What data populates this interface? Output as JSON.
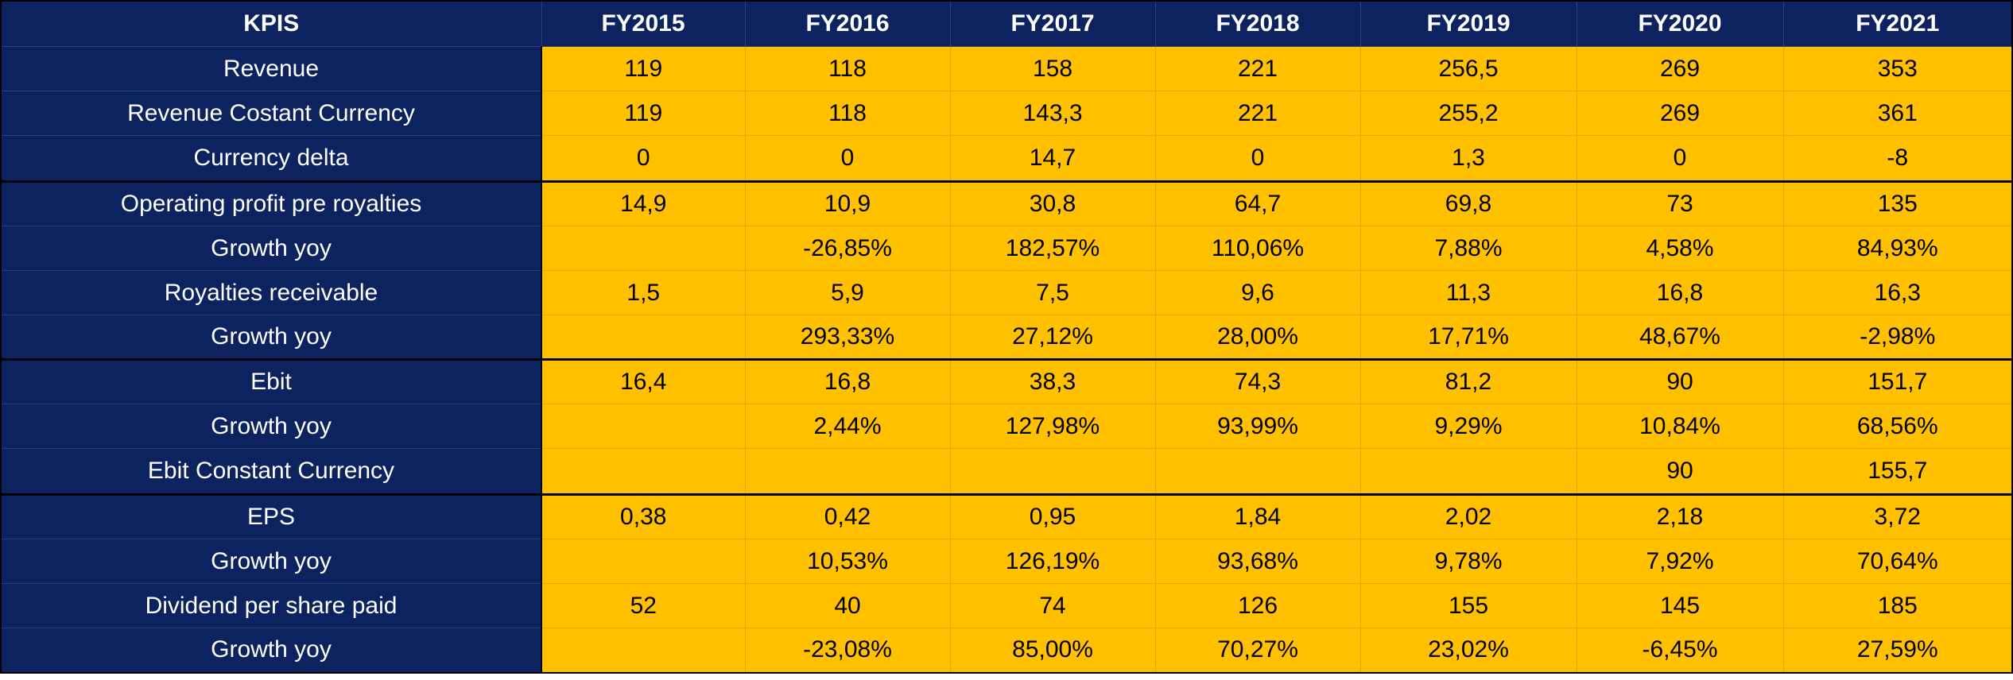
{
  "table": {
    "header": [
      "KPIS",
      "FY2015",
      "FY2016",
      "FY2017",
      "FY2018",
      "FY2019",
      "FY2020",
      "FY2021"
    ],
    "rows": [
      {
        "label": "Revenue",
        "values": [
          "119",
          "118",
          "158",
          "221",
          "256,5",
          "269",
          "353"
        ]
      },
      {
        "label": "Revenue Costant Currency",
        "values": [
          "119",
          "118",
          "143,3",
          "221",
          "255,2",
          "269",
          "361"
        ]
      },
      {
        "label": "Currency delta",
        "values": [
          "0",
          "0",
          "14,7",
          "0",
          "1,3",
          "0",
          "-8"
        ]
      },
      {
        "label": "Operating profit pre royalties",
        "values": [
          "14,9",
          "10,9",
          "30,8",
          "64,7",
          "69,8",
          "73",
          "135"
        ]
      },
      {
        "label": "Growth yoy",
        "values": [
          "",
          "-26,85%",
          "182,57%",
          "110,06%",
          "7,88%",
          "4,58%",
          "84,93%"
        ]
      },
      {
        "label": "Royalties receivable",
        "values": [
          "1,5",
          "5,9",
          "7,5",
          "9,6",
          "11,3",
          "16,8",
          "16,3"
        ]
      },
      {
        "label": "Growth yoy",
        "values": [
          "",
          "293,33%",
          "27,12%",
          "28,00%",
          "17,71%",
          "48,67%",
          "-2,98%"
        ]
      },
      {
        "label": "Ebit",
        "values": [
          "16,4",
          "16,8",
          "38,3",
          "74,3",
          "81,2",
          "90",
          "151,7"
        ]
      },
      {
        "label": "Growth yoy",
        "values": [
          "",
          "2,44%",
          "127,98%",
          "93,99%",
          "9,29%",
          "10,84%",
          "68,56%"
        ]
      },
      {
        "label": "Ebit Constant Currency",
        "values": [
          "",
          "",
          "",
          "",
          "",
          "90",
          "155,7"
        ]
      },
      {
        "label": "EPS",
        "values": [
          "0,38",
          "0,42",
          "0,95",
          "1,84",
          "2,02",
          "2,18",
          "3,72"
        ]
      },
      {
        "label": "Growth yoy",
        "values": [
          "",
          "10,53%",
          "126,19%",
          "93,68%",
          "9,78%",
          "7,92%",
          "70,64%"
        ]
      },
      {
        "label": "Dividend per share paid",
        "values": [
          "52",
          "40",
          "74",
          "126",
          "155",
          "145",
          "185"
        ]
      },
      {
        "label": "Growth yoy",
        "values": [
          "",
          "-23,08%",
          "85,00%",
          "70,27%",
          "23,02%",
          "-6,45%",
          "27,59%"
        ]
      }
    ]
  },
  "colors": {
    "header_bg": "#0c2360",
    "value_bg": "#ffc000",
    "header_text": "#ffffff",
    "value_text": "#000000"
  }
}
